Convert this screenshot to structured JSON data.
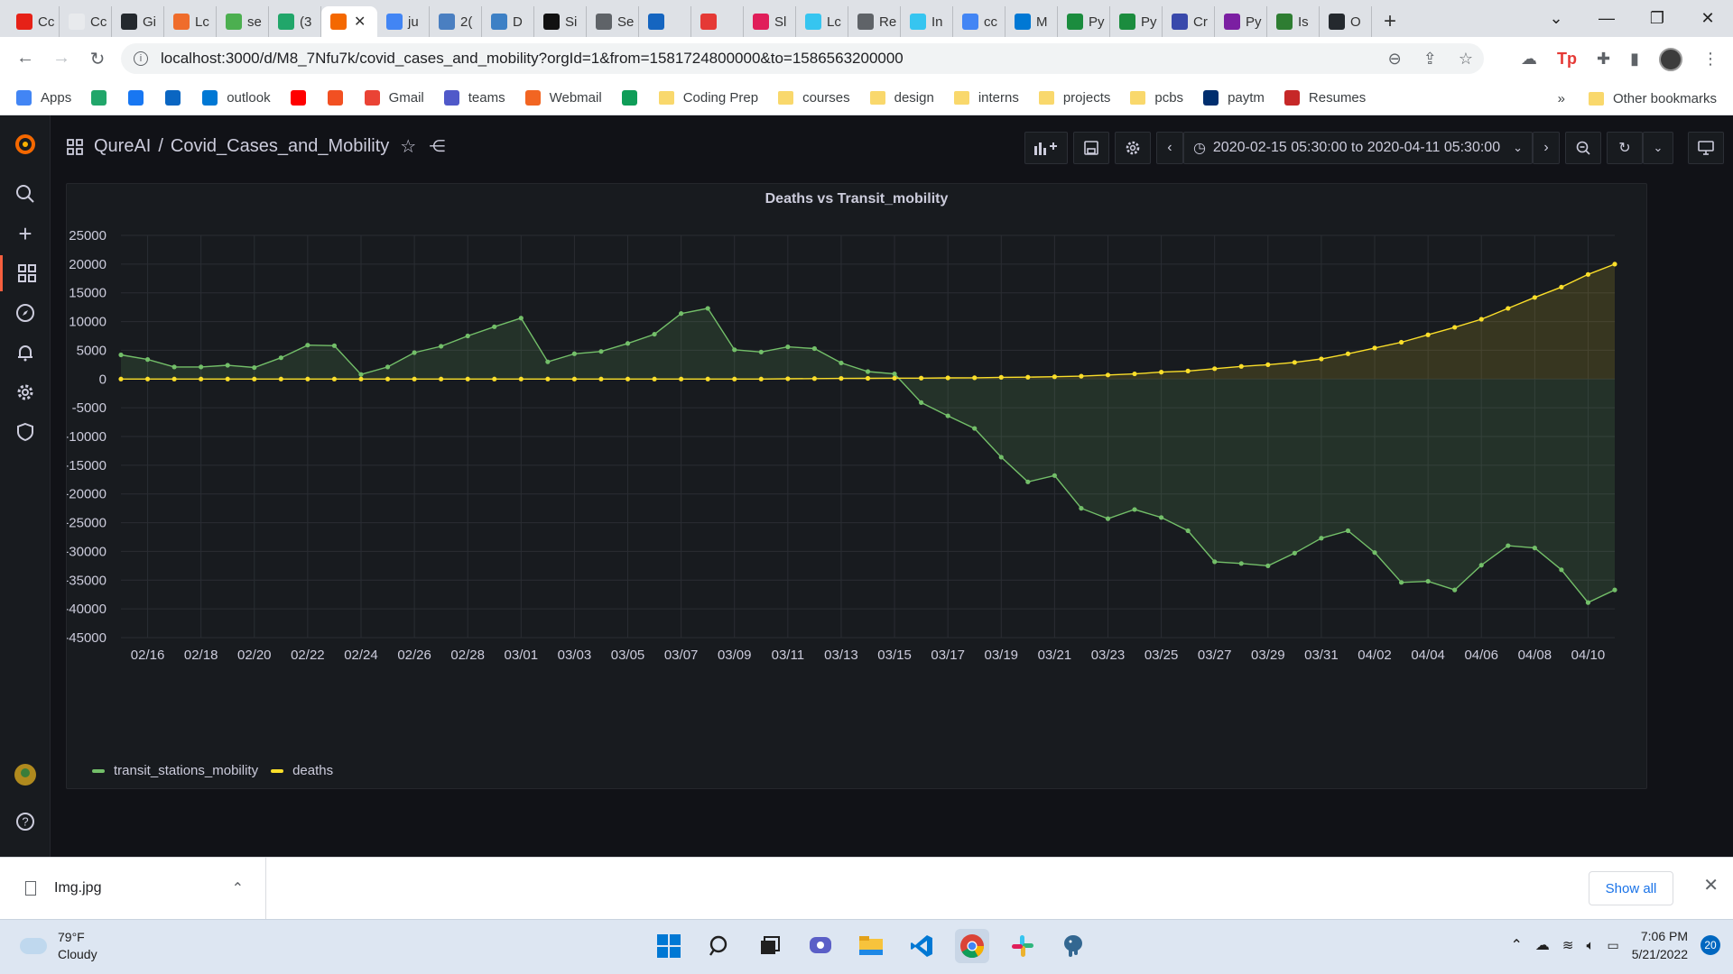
{
  "browser": {
    "tabs": [
      {
        "label": "Cc",
        "color": "#e62117",
        "icon": "youtube-icon"
      },
      {
        "label": "Cc",
        "color": "#e8eaed",
        "icon": "blank-icon"
      },
      {
        "label": "Gi",
        "color": "#24292e",
        "icon": "github-icon"
      },
      {
        "label": "Lc",
        "color": "#ef6c2b",
        "icon": "asterisk-icon"
      },
      {
        "label": "se",
        "color": "#4caf50",
        "icon": "leaf-icon"
      },
      {
        "label": "(3",
        "color": "#21a66a",
        "icon": "badge-icon"
      },
      {
        "label": "",
        "color": "#f46800",
        "icon": "grafana-icon",
        "active": true
      },
      {
        "label": "ju",
        "color": "#4285f4",
        "icon": "google-icon"
      },
      {
        "label": "2(",
        "color": "#4a7fc1",
        "icon": "kaggle-icon"
      },
      {
        "label": "D",
        "color": "#3d80c5",
        "icon": "cube-icon"
      },
      {
        "label": "Si",
        "color": "#111111",
        "icon": "p-icon"
      },
      {
        "label": "Se",
        "color": "#5f6368",
        "icon": "globe-icon"
      },
      {
        "label": "",
        "color": "#1565c0",
        "icon": "fx-icon"
      },
      {
        "label": "",
        "color": "#e53935",
        "icon": "t-icon"
      },
      {
        "label": "Sl",
        "color": "#e01e5a",
        "icon": "slack-icon"
      },
      {
        "label": "Lc",
        "color": "#36c5f0",
        "icon": "slack-icon"
      },
      {
        "label": "Re",
        "color": "#5f6368",
        "icon": "globe-icon"
      },
      {
        "label": "In",
        "color": "#36c5f0",
        "icon": "slack-icon"
      },
      {
        "label": "cc",
        "color": "#4285f4",
        "icon": "google-icon"
      },
      {
        "label": "M",
        "color": "#0078d4",
        "icon": "outlook-icon"
      },
      {
        "label": "Py",
        "color": "#1b8c3e",
        "icon": "w-icon"
      },
      {
        "label": "Py",
        "color": "#1b8c3e",
        "icon": "w-icon"
      },
      {
        "label": "Cr",
        "color": "#3949ab",
        "icon": "u-icon"
      },
      {
        "label": "Py",
        "color": "#7b1fa2",
        "icon": "p-icon"
      },
      {
        "label": "Is",
        "color": "#2e7d32",
        "icon": "link-icon"
      },
      {
        "label": "O",
        "color": "#24292e",
        "icon": "github-icon"
      }
    ],
    "url": "localhost:3000/d/M8_7Nfu7k/covid_cases_and_mobility?orgId=1&from=1581724800000&to=1586563200000",
    "bookmarks": [
      {
        "label": "Apps",
        "color": "#4285f4",
        "icon": "apps-icon"
      },
      {
        "label": "",
        "color": "#21a66a",
        "icon": "badge-icon"
      },
      {
        "label": "",
        "color": "#1877f2",
        "icon": "facebook-icon"
      },
      {
        "label": "",
        "color": "#0a66c2",
        "icon": "linkedin-icon"
      },
      {
        "label": "outlook",
        "color": "#0078d4",
        "icon": "outlook-icon"
      },
      {
        "label": "",
        "color": "#ff0000",
        "icon": "youtube-icon"
      },
      {
        "label": "",
        "color": "#f25022",
        "icon": "microsoft-icon"
      },
      {
        "label": "Gmail",
        "color": "#ea4335",
        "icon": "gmail-icon"
      },
      {
        "label": "teams",
        "color": "#5059c9",
        "icon": "teams-icon"
      },
      {
        "label": "Webmail",
        "color": "#f26522",
        "icon": "webmail-icon"
      },
      {
        "label": "",
        "color": "#0f9d58",
        "icon": "drive-icon"
      },
      {
        "label": "Coding Prep",
        "folder": true
      },
      {
        "label": "courses",
        "folder": true
      },
      {
        "label": "design",
        "folder": true
      },
      {
        "label": "interns",
        "folder": true
      },
      {
        "label": "projects",
        "folder": true
      },
      {
        "label": "pcbs",
        "folder": true
      },
      {
        "label": "paytm",
        "color": "#002e6e",
        "icon": "paytm-icon"
      },
      {
        "label": "Resumes",
        "color": "#c62828",
        "icon": "cardinal-icon"
      }
    ],
    "other_bookmarks": "Other bookmarks",
    "chevron": "»"
  },
  "grafana": {
    "org": "QureAI",
    "separator": "/",
    "dashboard": "Covid_Cases_and_Mobility",
    "time_range": "2020-02-15 05:30:00 to 2020-04-11 05:30:00",
    "accent": "#f55f3e"
  },
  "chart_data": {
    "type": "line",
    "title": "Deaths vs Transit_mobility",
    "xlabel": "",
    "ylabel": "",
    "ylim": [
      -45000,
      25000
    ],
    "yticks": [
      25000,
      20000,
      15000,
      10000,
      5000,
      0,
      -5000,
      -10000,
      -15000,
      -20000,
      -25000,
      -30000,
      -35000,
      -40000,
      -45000
    ],
    "xtick_labels": [
      "02/16",
      "02/18",
      "02/20",
      "02/22",
      "02/24",
      "02/26",
      "02/28",
      "03/01",
      "03/03",
      "03/05",
      "03/07",
      "03/09",
      "03/11",
      "03/13",
      "03/15",
      "03/17",
      "03/19",
      "03/21",
      "03/23",
      "03/25",
      "03/27",
      "03/29",
      "03/31",
      "04/02",
      "04/04",
      "04/06",
      "04/08",
      "04/10"
    ],
    "x_start": "02/15",
    "grid": true,
    "legend": "bottom-left",
    "series": [
      {
        "name": "transit_stations_mobility",
        "color": "#73bf69",
        "values": [
          4200,
          3400,
          2100,
          2100,
          2400,
          2000,
          3700,
          5900,
          5800,
          800,
          2100,
          4600,
          5700,
          7500,
          9100,
          10600,
          3000,
          4400,
          4800,
          6200,
          7800,
          11400,
          12300,
          5100,
          4700,
          5600,
          5300,
          2800,
          1300,
          900,
          -4100,
          -6400,
          -8600,
          -13600,
          -17900,
          -16800,
          -22500,
          -24300,
          -22700,
          -24100,
          -26400,
          -31800,
          -32100,
          -32500,
          -30300,
          -27700,
          -26400,
          -30200,
          -35400,
          -35200,
          -36700,
          -32400,
          -29000,
          -29400,
          -33200,
          -38900,
          -36700
        ]
      },
      {
        "name": "deaths",
        "color": "#fade2a",
        "values": [
          0,
          0,
          0,
          0,
          0,
          0,
          0,
          0,
          0,
          0,
          0,
          0,
          0,
          0,
          0,
          0,
          0,
          0,
          0,
          0,
          0,
          0,
          0,
          0,
          0,
          50,
          80,
          100,
          120,
          150,
          160,
          200,
          220,
          300,
          320,
          400,
          500,
          700,
          900,
          1200,
          1400,
          1800,
          2200,
          2500,
          2900,
          3500,
          4400,
          5400,
          6400,
          7700,
          9000,
          10400,
          12300,
          14200,
          16000,
          18200,
          20000
        ]
      }
    ]
  },
  "downloads": {
    "file": "Img.jpg",
    "show_all": "Show all"
  },
  "taskbar": {
    "temp": "79°F",
    "condition": "Cloudy",
    "time": "7:06 PM",
    "date": "5/21/2022",
    "notifications": "20"
  }
}
